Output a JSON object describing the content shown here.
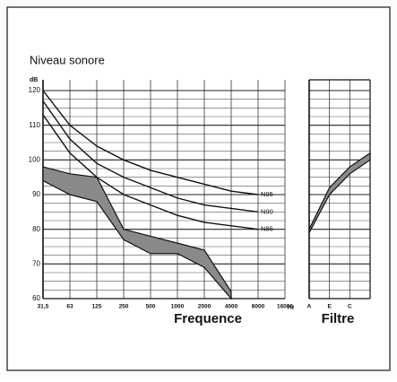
{
  "chart_data": {
    "type": "line",
    "title": "Niveau sonore",
    "y_label": "dB",
    "x_label": "Frequence",
    "x_unit": "Hz",
    "categories": [
      "31,5",
      "63",
      "125",
      "250",
      "500",
      "1000",
      "2000",
      "4000",
      "8000",
      "16000"
    ],
    "series": [
      {
        "name": "N95",
        "color": "#111111",
        "values": [
          120,
          110,
          104,
          100,
          97,
          95,
          93,
          91,
          90,
          null
        ]
      },
      {
        "name": "N90",
        "color": "#111111",
        "values": [
          117,
          106,
          99,
          95,
          92,
          89,
          87,
          86,
          85,
          null
        ]
      },
      {
        "name": "N85",
        "color": "#111111",
        "values": [
          113,
          102,
          95,
          90,
          87,
          84,
          82,
          81,
          80,
          null
        ]
      }
    ],
    "band": {
      "color": "#8a8a8a",
      "upper": [
        98,
        96,
        95,
        80,
        78,
        76,
        74,
        62,
        null,
        null
      ],
      "lower": [
        94,
        90,
        88,
        77,
        73,
        73,
        69,
        60,
        null,
        null
      ]
    },
    "filter": {
      "title": "Filtre",
      "categories": [
        "A",
        "E",
        "C",
        null
      ],
      "upper": [
        80,
        92,
        98,
        102
      ],
      "lower": [
        79,
        90,
        96,
        100
      ]
    },
    "ylim": [
      60,
      120
    ],
    "yticks": [
      60,
      70,
      80,
      90,
      100,
      110,
      120
    ],
    "yminor": [
      62.5,
      65,
      67.5,
      72.5,
      75,
      77.5,
      82.5,
      85,
      87.5,
      92.5,
      95,
      97.5,
      102.5,
      105,
      107.5,
      112.5,
      115,
      117.5
    ],
    "grid": true
  }
}
